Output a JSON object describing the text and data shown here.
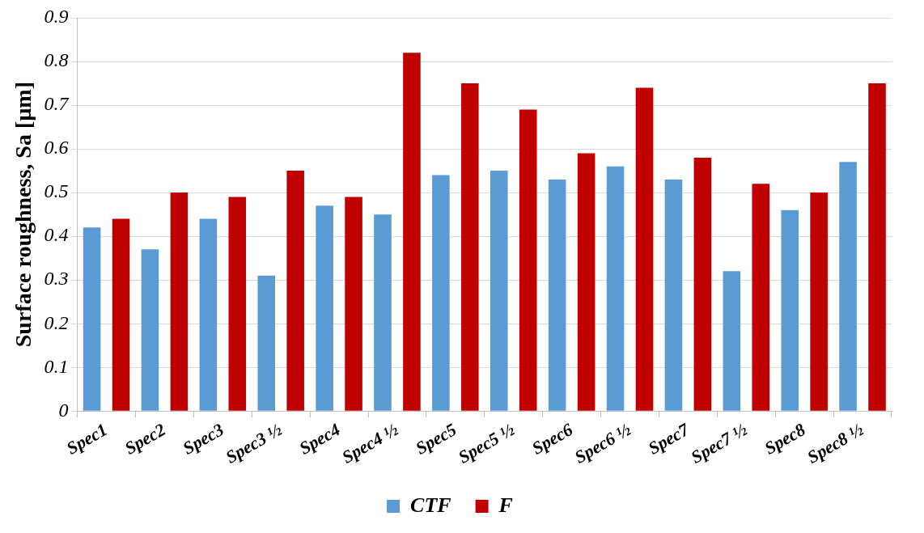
{
  "chart_data": {
    "type": "bar",
    "ylabel": "Surface roughness, Sa [µm]",
    "categories": [
      "Spec1",
      "Spec2",
      "Spec3",
      "Spec3 ½",
      "Spec4",
      "Spec4 ½",
      "Spec5",
      "Spec5 ½",
      "Spec6",
      "Spec6 ½",
      "Spec7",
      "Spec7 ½",
      "Spec8",
      "Spec8 ½"
    ],
    "series": [
      {
        "name": "CTF",
        "color": "#5b9bd5",
        "values": [
          0.42,
          0.37,
          0.44,
          0.31,
          0.47,
          0.45,
          0.54,
          0.55,
          0.53,
          0.56,
          0.53,
          0.32,
          0.46,
          0.57
        ]
      },
      {
        "name": "F",
        "color": "#c00000",
        "values": [
          0.44,
          0.5,
          0.49,
          0.55,
          0.49,
          0.82,
          0.75,
          0.69,
          0.59,
          0.74,
          0.58,
          0.52,
          0.5,
          0.75
        ]
      }
    ],
    "ylim": [
      0,
      0.9
    ],
    "yticks": [
      0,
      0.1,
      0.2,
      0.3,
      0.4,
      0.5,
      0.6,
      0.7,
      0.8,
      0.9
    ],
    "grid": "y",
    "legend": "bottom"
  }
}
